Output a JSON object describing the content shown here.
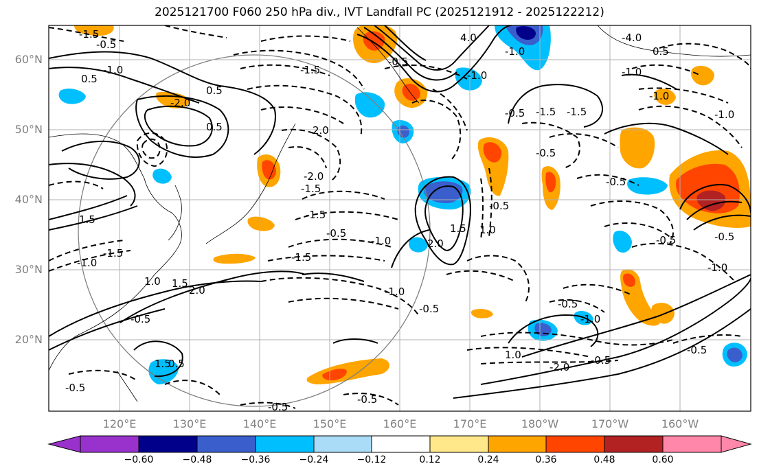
{
  "title": "2025121700 F060 250 hPa div., IVT Landfall PC (2025121912 - 2025122212)",
  "map": {
    "lat_labels": [
      "60°N",
      "50°N",
      "40°N",
      "30°N",
      "20°N"
    ],
    "lon_labels": [
      "120°E",
      "130°E",
      "140°E",
      "150°E",
      "160°E",
      "170°E",
      "180°W",
      "170°W",
      "160°W"
    ],
    "contour_labels": [
      "-1.5",
      "-0.5",
      "-0.5",
      "-1.0",
      "4.0",
      "-4.0",
      "0.5",
      "-1.0",
      "0.5",
      "-2.0",
      "-1.5",
      "0.5",
      "-1.0",
      "-1.5",
      "-1.5",
      "-1.0",
      "-1.0",
      "-0.5",
      "-1.0",
      "2.0",
      "-0.5",
      "-0.5",
      "0.5",
      "-1.5",
      "-1.0",
      "-1.5",
      "-0.5",
      "-0.5",
      "1.0",
      "2.0",
      "-0.5",
      "-1.0",
      "-2.0",
      "-0.5",
      "-0.5",
      "-1.0",
      "-0.5",
      "-0.5",
      "-2.0",
      "-1.5",
      "1.5",
      "-1.0",
      "-1.5",
      "1.0",
      "1.5",
      "2.0",
      "-0.5",
      "1.0",
      "1.5",
      "-0.5",
      "-0.5",
      "0.5",
      "-1.0",
      "-0.5",
      "1.5",
      "-0.5"
    ]
  },
  "colorbar": {
    "ticks": [
      "−0.60",
      "−0.48",
      "−0.36",
      "−0.24",
      "−0.12",
      "0.12",
      "0.24",
      "0.36",
      "0.48",
      "0.60"
    ],
    "colors": [
      "#9932cc",
      "#00008b",
      "#3a5fcd",
      "#00bfff",
      "#aadcf8",
      "#ffffff",
      "#ffe88a",
      "#ffa500",
      "#ff4500",
      "#b22222",
      "#ff88aa"
    ]
  }
}
